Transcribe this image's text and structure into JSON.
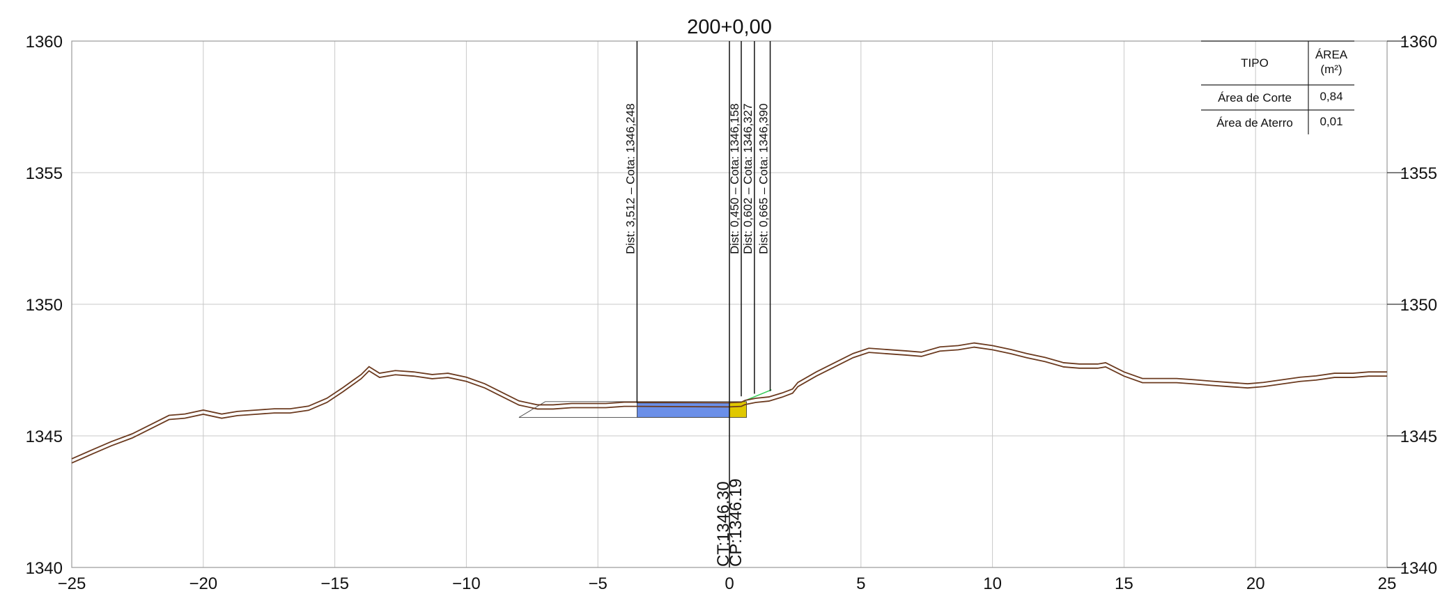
{
  "chart_data": {
    "type": "line",
    "title": "200+0,00",
    "xlabel": "",
    "ylabel": "",
    "xlim": [
      -25,
      25
    ],
    "ylim": [
      1340,
      1360
    ],
    "x_ticks": [
      "−25",
      "−20",
      "−15",
      "−10",
      "−5",
      "0",
      "5",
      "10",
      "15",
      "20",
      "25"
    ],
    "y_ticks_left": [
      "1340",
      "1345",
      "1350",
      "1355",
      "1360"
    ],
    "y_ticks_right": [
      "1340",
      "1345",
      "1350",
      "1355",
      "1360"
    ],
    "grid": true,
    "series": [
      {
        "name": "",
        "values_note": "",
        "x": [
          -25,
          -24.2,
          -23.5,
          -22.7,
          -22.0,
          -21.3,
          -20.7,
          -20.0,
          -19.3,
          -18.7,
          -18.0,
          -17.3,
          -16.7,
          -16.0,
          -15.3,
          -14.7,
          -14.0,
          -13.7,
          -13.3,
          -12.7,
          -12.0,
          -11.3,
          -10.7,
          -10.0,
          -9.3,
          -8.7,
          -8.0,
          -7.3,
          -6.7,
          -6.0,
          -5.3,
          -4.7,
          -4.0,
          -3.5,
          0.0,
          0.45,
          0.6,
          1.0,
          1.5,
          2.0,
          2.4,
          2.6,
          3.3,
          4.0,
          4.7,
          5.3,
          6.0,
          6.7,
          7.3,
          8.0,
          8.7,
          9.3,
          10.0,
          10.7,
          11.3,
          12.0,
          12.7,
          13.3,
          14.0,
          14.3,
          15.0,
          15.7,
          16.3,
          17.0,
          17.7,
          18.3,
          19.0,
          19.7,
          20.3,
          21.0,
          21.7,
          22.3,
          23.0,
          23.7,
          24.3,
          25.0
        ],
        "y": [
          1344.05,
          1344.4,
          1344.7,
          1345.0,
          1345.35,
          1345.7,
          1345.75,
          1345.9,
          1345.75,
          1345.85,
          1345.9,
          1345.95,
          1345.95,
          1346.05,
          1346.35,
          1346.75,
          1347.25,
          1347.55,
          1347.3,
          1347.4,
          1347.35,
          1347.25,
          1347.3,
          1347.15,
          1346.9,
          1346.6,
          1346.25,
          1346.1,
          1346.1,
          1346.15,
          1346.15,
          1346.15,
          1346.2,
          1346.2,
          1346.18,
          1346.2,
          1346.27,
          1346.35,
          1346.4,
          1346.55,
          1346.7,
          1346.95,
          1347.35,
          1347.7,
          1348.05,
          1348.25,
          1348.2,
          1348.15,
          1348.1,
          1348.3,
          1348.35,
          1348.45,
          1348.35,
          1348.2,
          1348.05,
          1347.9,
          1347.7,
          1347.65,
          1347.65,
          1347.7,
          1347.35,
          1347.1,
          1347.1,
          1347.1,
          1347.05,
          1347.0,
          1346.95,
          1346.9,
          1346.95,
          1347.05,
          1347.15,
          1347.2,
          1347.3,
          1347.3,
          1347.35,
          1347.35
        ],
        "color": "#6b3a1f"
      }
    ],
    "cut_area": {
      "x_from": -3.51,
      "x_to": 0.0,
      "y_top": 1346.25,
      "y_bottom": 1345.7,
      "color": "#6b8fe8"
    },
    "fill_area": {
      "x_from": 0.0,
      "x_to": 0.65,
      "y_top": 1346.3,
      "y_bottom": 1345.7,
      "color": "#e0c800"
    },
    "markers": [
      {
        "x": -3.512,
        "label": "Dist: 3,512  –  Cota: 1346,248"
      },
      {
        "x": 0.45,
        "label": "Dist: 0,450  –  Cota: 1346,158"
      },
      {
        "x": 0.602,
        "label": "Dist: 0,602  –  Cota: 1346,327"
      },
      {
        "x": 0.665,
        "label": "Dist: 0,665  –  Cota: 1346,390"
      }
    ],
    "center_labels": [
      "CT:1346.30",
      "CP:1346.19"
    ],
    "legend_table": {
      "position": "top-right",
      "headers": [
        "TIPO",
        "ÁREA",
        "(m²)"
      ],
      "rows": [
        {
          "tipo": "Área de Corte",
          "area": "0,84"
        },
        {
          "tipo": "Área de Aterro",
          "area": "0,01"
        }
      ]
    }
  }
}
